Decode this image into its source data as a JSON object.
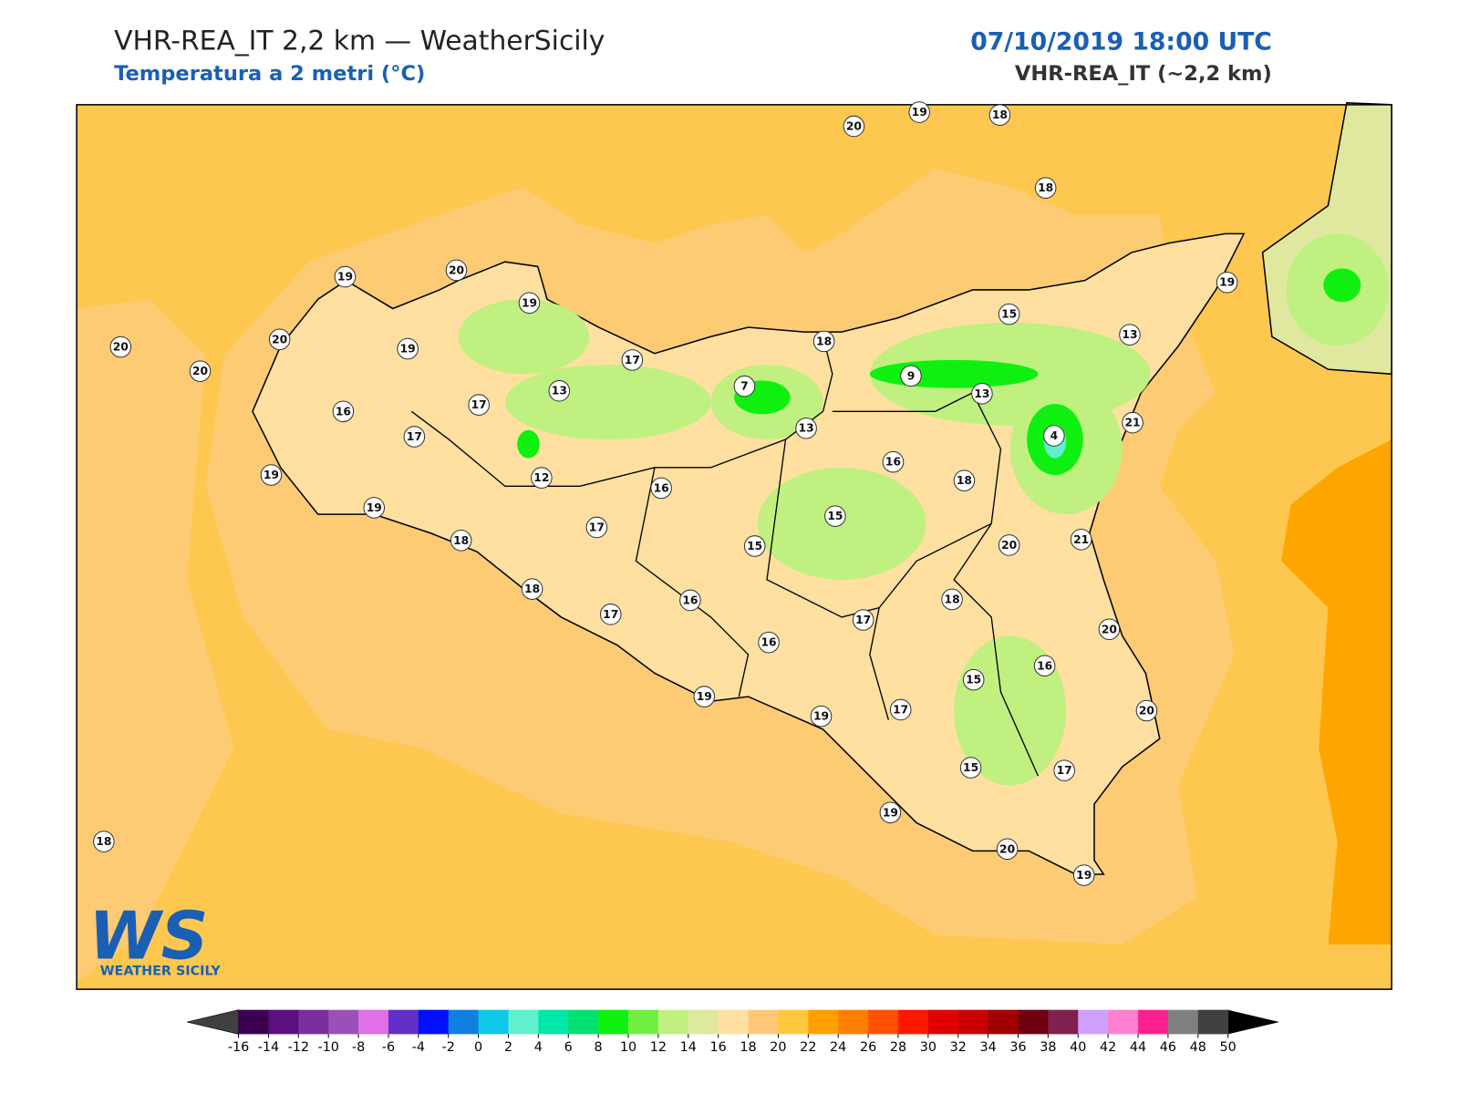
{
  "header": {
    "title": "VHR-REA_IT 2,2 km — WeatherSicily",
    "subtitle": "Temperatura a 2 metri (°C)",
    "datetime": "07/10/2019 18:00 UTC",
    "model": "VHR-REA_IT (~2,2 km)"
  },
  "stations": [
    20,
    19,
    18,
    18,
    19,
    20,
    19,
    19,
    20,
    20,
    20,
    19,
    17,
    18,
    15,
    13,
    7,
    9,
    13,
    13,
    17,
    16,
    17,
    13,
    4,
    21,
    16,
    19,
    12,
    16,
    18,
    19,
    15,
    17,
    18,
    15,
    20,
    21,
    18,
    16,
    18,
    17,
    17,
    16,
    20,
    16,
    15,
    19,
    19,
    17,
    20,
    15,
    17,
    19,
    18,
    20,
    19
  ],
  "colorbar": {
    "ticks": [
      -16,
      -14,
      -12,
      -10,
      -8,
      -6,
      -4,
      -2,
      0,
      2,
      4,
      6,
      8,
      10,
      12,
      14,
      16,
      18,
      20,
      22,
      24,
      26,
      28,
      30,
      32,
      34,
      36,
      38,
      40,
      42,
      44,
      46,
      48,
      50
    ],
    "colors": [
      "#3d0050",
      "#5c1080",
      "#7a2fa0",
      "#9a50b8",
      "#e070e8",
      "#6030c8",
      "#0010ff",
      "#1080e0",
      "#10c8e8",
      "#60f0d0",
      "#00e8a8",
      "#00e070",
      "#10f010",
      "#70f040",
      "#c0f080",
      "#e0e8a0",
      "#ffe0a0",
      "#ffc878",
      "#ffc840",
      "#ffa000",
      "#ff8000",
      "#ff5000",
      "#ff1800",
      "#e00000",
      "#c80000",
      "#a00000",
      "#700010",
      "#802050",
      "#d0a0ff",
      "#ff80d0",
      "#ff2090",
      "#808080",
      "#404040"
    ],
    "under_color": "#404040",
    "over_color": "#000000"
  },
  "logo": {
    "mark": "WS",
    "name": "WEATHER SICILY"
  }
}
